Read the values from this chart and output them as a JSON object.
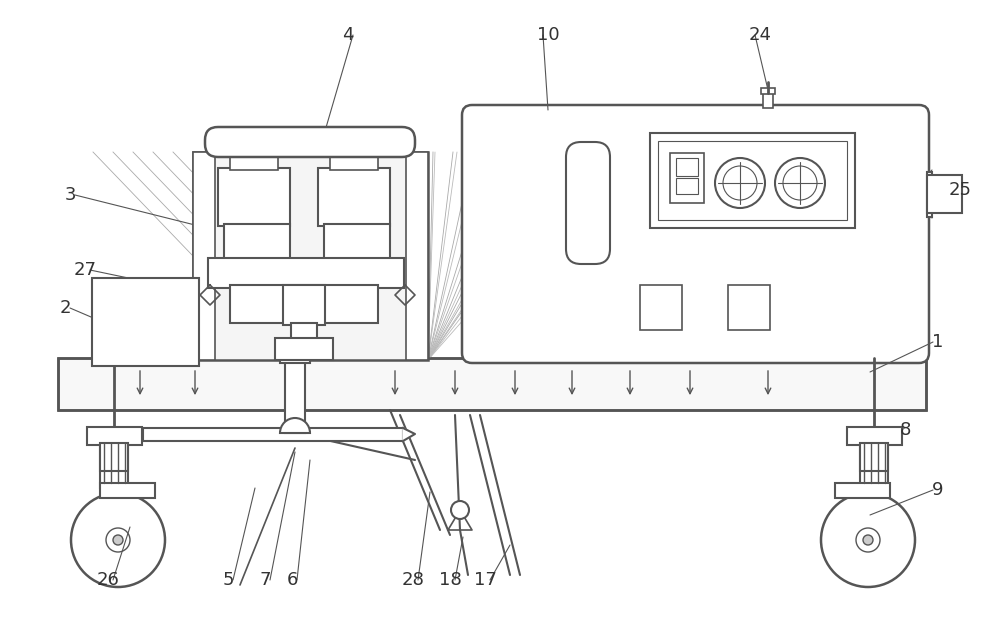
{
  "bg_color": "#ffffff",
  "line_color": "#555555",
  "fig_width": 10.0,
  "fig_height": 6.42
}
